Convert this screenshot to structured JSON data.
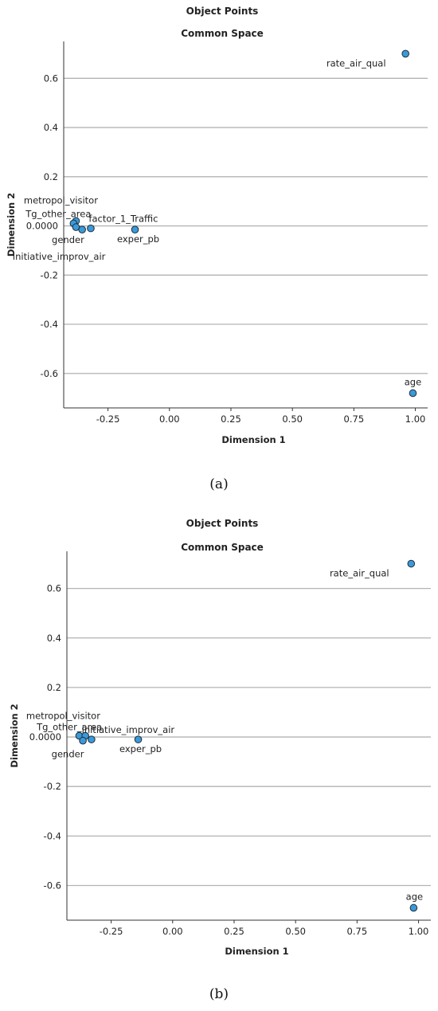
{
  "chart_data": [
    {
      "type": "scatter",
      "title": "Object Points",
      "subtitle": "Common Space",
      "xlabel": "Dimension 1",
      "ylabel": "Dimension 2",
      "xlim": [
        -0.43,
        1.05
      ],
      "ylim": [
        -0.74,
        0.75
      ],
      "xticks": [
        -0.25,
        0.0,
        0.25,
        0.5,
        0.75,
        1.0
      ],
      "xtick_labels": [
        "-0.25",
        "0.00",
        "0.25",
        "0.50",
        "0.75",
        "1.00"
      ],
      "yticks": [
        0.6,
        0.4,
        0.2,
        0.0,
        -0.2,
        -0.4,
        -0.6
      ],
      "ytick_labels": [
        "0.6",
        "0.4",
        "0.2",
        "0.0000",
        "-0.2",
        "-0.4",
        "-0.6"
      ],
      "grid": "horizontal",
      "marker_color": "#3a9ad9",
      "points": [
        {
          "x": 0.96,
          "y": 0.7,
          "label": "rate_air_qual"
        },
        {
          "x": 0.99,
          "y": -0.68,
          "label": "age"
        },
        {
          "x": -0.14,
          "y": -0.015,
          "label": "exper_pb"
        },
        {
          "x": -0.38,
          "y": 0.02,
          "label": "metropol_visitor"
        },
        {
          "x": -0.39,
          "y": 0.01,
          "label": "Tg_other_area"
        },
        {
          "x": -0.38,
          "y": -0.005,
          "label": "gender"
        },
        {
          "x": -0.355,
          "y": -0.015,
          "label": "initiative_improv_air"
        },
        {
          "x": -0.32,
          "y": -0.01,
          "label": "factor_1_Traffic"
        }
      ],
      "caption": "(a)"
    },
    {
      "type": "scatter",
      "title": "Object Points",
      "subtitle": "Common Space",
      "xlabel": "Dimension 1",
      "ylabel": "Dimension 2",
      "xlim": [
        -0.43,
        1.05
      ],
      "ylim": [
        -0.74,
        0.75
      ],
      "xticks": [
        -0.25,
        0.0,
        0.25,
        0.5,
        0.75,
        1.0
      ],
      "xtick_labels": [
        "-0.25",
        "0.00",
        "0.25",
        "0.50",
        "0.75",
        "1.00"
      ],
      "yticks": [
        0.6,
        0.4,
        0.2,
        0.0,
        -0.2,
        -0.4,
        -0.6
      ],
      "ytick_labels": [
        "0.6",
        "0.4",
        "0.2",
        "0.0000",
        "-0.2",
        "-0.4",
        "-0.6"
      ],
      "grid": "horizontal",
      "marker_color": "#3a9ad9",
      "points": [
        {
          "x": 0.97,
          "y": 0.7,
          "label": "rate_air_qual"
        },
        {
          "x": 0.98,
          "y": -0.69,
          "label": "age"
        },
        {
          "x": -0.14,
          "y": -0.01,
          "label": "exper_pb"
        },
        {
          "x": -0.38,
          "y": 0.005,
          "label": "metropol_visitor"
        },
        {
          "x": -0.355,
          "y": 0.005,
          "label": "Tg_other_area"
        },
        {
          "x": -0.365,
          "y": -0.015,
          "label": "gender"
        },
        {
          "x": -0.33,
          "y": -0.01,
          "label": "initiative_improv_air"
        }
      ],
      "caption": "(b)"
    }
  ]
}
